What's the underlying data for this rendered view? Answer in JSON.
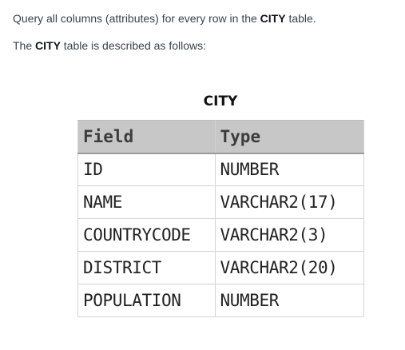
{
  "question": {
    "line1": {
      "before": "Query all columns (attributes) for every row in the ",
      "bold": "CITY",
      "after": " table."
    },
    "line2": {
      "before": "The ",
      "bold": "CITY",
      "after": " table is described as follows:"
    }
  },
  "schema_table": {
    "caption": "CITY",
    "headers": [
      "Field",
      "Type"
    ],
    "rows": [
      [
        "ID",
        "NUMBER"
      ],
      [
        "NAME",
        "VARCHAR2(17)"
      ],
      [
        "COUNTRYCODE",
        "VARCHAR2(3)"
      ],
      [
        "DISTRICT",
        "VARCHAR2(20)"
      ],
      [
        "POPULATION",
        "NUMBER"
      ]
    ]
  }
}
